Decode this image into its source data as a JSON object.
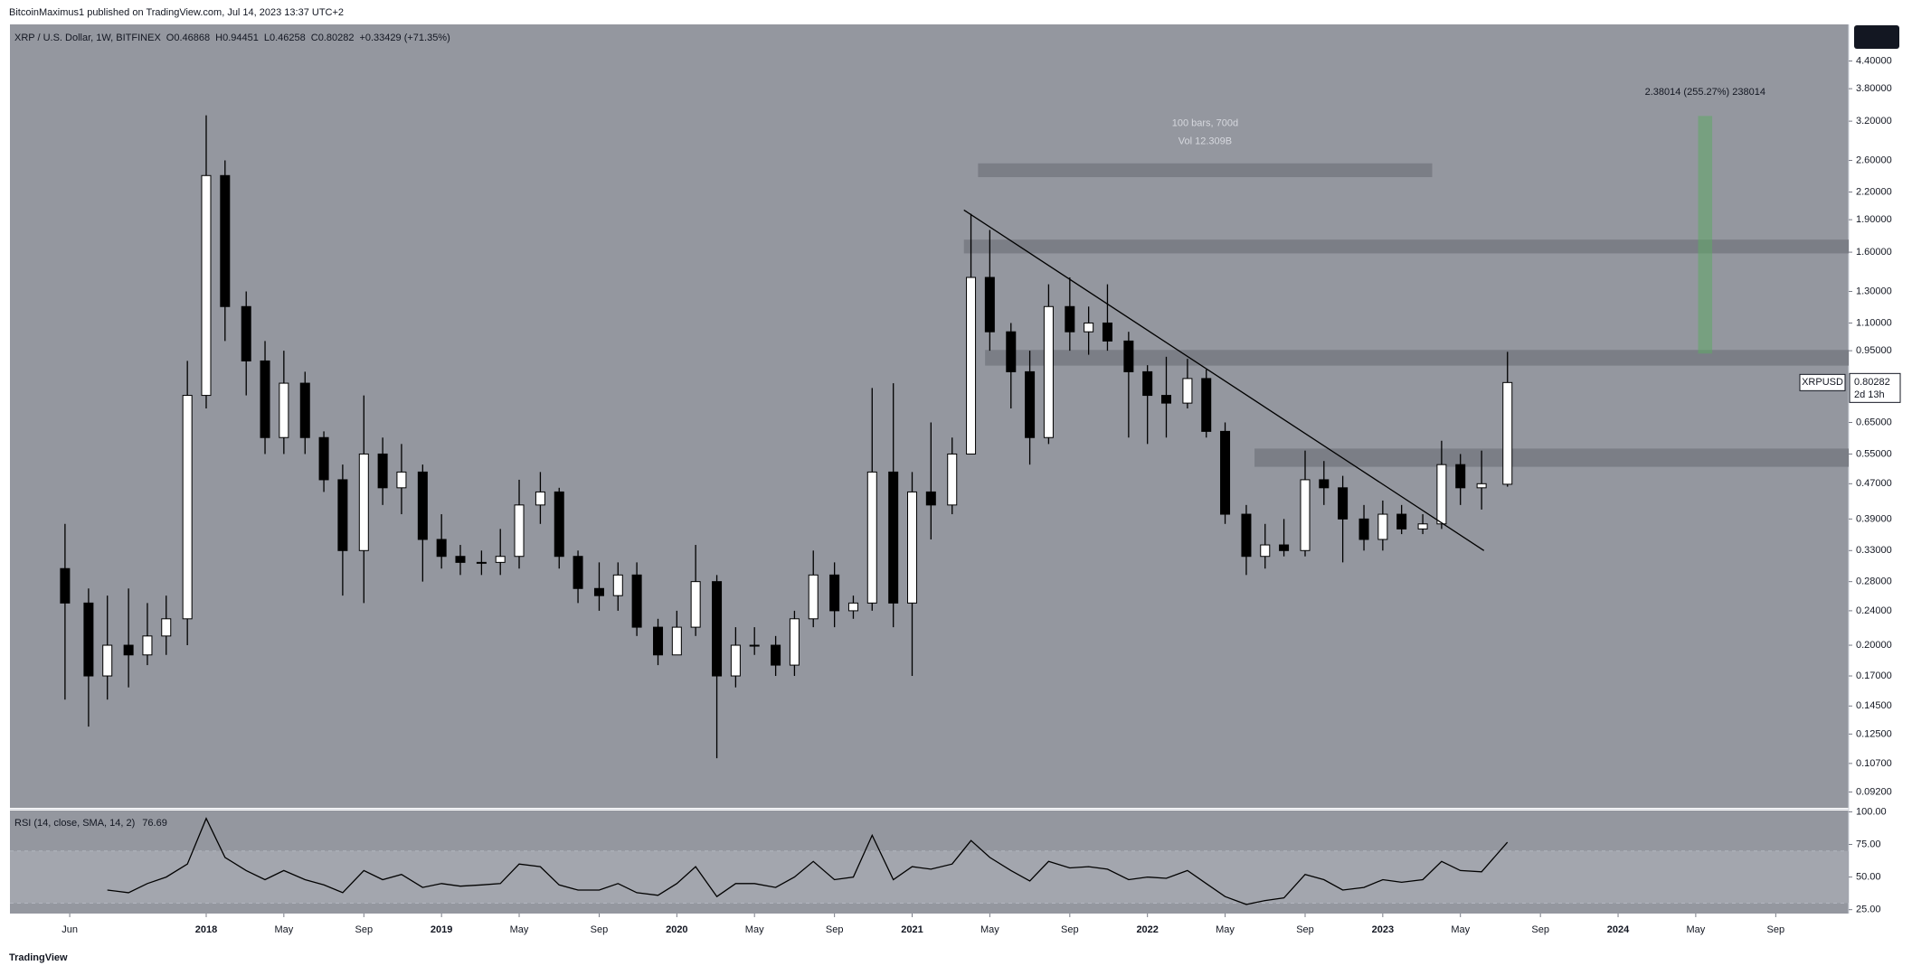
{
  "header": {
    "publisher": "BitcoinMaximus1 published on TradingView.com, Jul 14, 2023 13:37 UTC+2"
  },
  "chart_data": {
    "type": "candlestick",
    "symbol": "XRP / U.S. Dollar, 1W, BITFINEX",
    "ohlc_letters": [
      "O",
      "H",
      "L",
      "C"
    ],
    "change": "+0.33429 (+71.35%)",
    "x": [
      2017.4,
      2017.5,
      2017.58,
      2017.67,
      2017.75,
      2017.83,
      2017.92,
      2018.0,
      2018.08,
      2018.17,
      2018.25,
      2018.33,
      2018.42,
      2018.5,
      2018.58,
      2018.67,
      2018.75,
      2018.83,
      2018.92,
      2019.0,
      2019.08,
      2019.17,
      2019.25,
      2019.33,
      2019.42,
      2019.5,
      2019.58,
      2019.67,
      2019.75,
      2019.83,
      2019.92,
      2020.0,
      2020.08,
      2020.17,
      2020.25,
      2020.33,
      2020.42,
      2020.5,
      2020.58,
      2020.67,
      2020.75,
      2020.83,
      2020.92,
      2021.0,
      2021.08,
      2021.17,
      2021.25,
      2021.33,
      2021.42,
      2021.5,
      2021.58,
      2021.67,
      2021.75,
      2021.83,
      2021.92,
      2022.0,
      2022.08,
      2022.17,
      2022.25,
      2022.33,
      2022.42,
      2022.5,
      2022.58,
      2022.67,
      2022.75,
      2022.83,
      2022.92,
      2023.0,
      2023.08,
      2023.17,
      2023.25,
      2023.33,
      2023.42,
      2023.53
    ],
    "ohlc": [
      [
        0.3,
        0.38,
        0.15,
        0.25
      ],
      [
        0.25,
        0.27,
        0.13,
        0.17
      ],
      [
        0.17,
        0.26,
        0.15,
        0.2
      ],
      [
        0.2,
        0.27,
        0.16,
        0.19
      ],
      [
        0.19,
        0.25,
        0.18,
        0.21
      ],
      [
        0.21,
        0.26,
        0.19,
        0.23
      ],
      [
        0.23,
        0.9,
        0.2,
        0.75
      ],
      [
        0.75,
        3.3,
        0.7,
        2.4
      ],
      [
        2.4,
        2.6,
        1.0,
        1.2
      ],
      [
        1.2,
        1.3,
        0.75,
        0.9
      ],
      [
        0.9,
        1.0,
        0.55,
        0.6
      ],
      [
        0.6,
        0.95,
        0.55,
        0.8
      ],
      [
        0.8,
        0.85,
        0.55,
        0.6
      ],
      [
        0.6,
        0.62,
        0.45,
        0.48
      ],
      [
        0.48,
        0.52,
        0.26,
        0.33
      ],
      [
        0.33,
        0.75,
        0.25,
        0.55
      ],
      [
        0.55,
        0.6,
        0.42,
        0.46
      ],
      [
        0.46,
        0.58,
        0.4,
        0.5
      ],
      [
        0.5,
        0.52,
        0.28,
        0.35
      ],
      [
        0.35,
        0.4,
        0.3,
        0.32
      ],
      [
        0.32,
        0.34,
        0.29,
        0.31
      ],
      [
        0.31,
        0.33,
        0.29,
        0.31
      ],
      [
        0.31,
        0.37,
        0.29,
        0.32
      ],
      [
        0.32,
        0.48,
        0.3,
        0.42
      ],
      [
        0.42,
        0.5,
        0.38,
        0.45
      ],
      [
        0.45,
        0.46,
        0.3,
        0.32
      ],
      [
        0.32,
        0.33,
        0.25,
        0.27
      ],
      [
        0.27,
        0.31,
        0.24,
        0.26
      ],
      [
        0.26,
        0.31,
        0.24,
        0.29
      ],
      [
        0.29,
        0.31,
        0.21,
        0.22
      ],
      [
        0.22,
        0.23,
        0.18,
        0.19
      ],
      [
        0.19,
        0.24,
        0.19,
        0.22
      ],
      [
        0.22,
        0.34,
        0.21,
        0.28
      ],
      [
        0.28,
        0.29,
        0.11,
        0.17
      ],
      [
        0.17,
        0.22,
        0.16,
        0.2
      ],
      [
        0.2,
        0.22,
        0.19,
        0.2
      ],
      [
        0.2,
        0.21,
        0.17,
        0.18
      ],
      [
        0.18,
        0.24,
        0.17,
        0.23
      ],
      [
        0.23,
        0.33,
        0.22,
        0.29
      ],
      [
        0.29,
        0.31,
        0.22,
        0.24
      ],
      [
        0.24,
        0.26,
        0.23,
        0.25
      ],
      [
        0.25,
        0.78,
        0.24,
        0.5
      ],
      [
        0.5,
        0.8,
        0.22,
        0.25
      ],
      [
        0.25,
        0.5,
        0.17,
        0.45
      ],
      [
        0.45,
        0.65,
        0.35,
        0.42
      ],
      [
        0.42,
        0.6,
        0.4,
        0.55
      ],
      [
        0.55,
        1.96,
        0.55,
        1.4
      ],
      [
        1.4,
        1.8,
        0.95,
        1.05
      ],
      [
        1.05,
        1.1,
        0.7,
        0.85
      ],
      [
        0.85,
        0.95,
        0.52,
        0.6
      ],
      [
        0.6,
        1.35,
        0.58,
        1.2
      ],
      [
        1.2,
        1.4,
        0.95,
        1.05
      ],
      [
        1.05,
        1.2,
        0.93,
        1.1
      ],
      [
        1.1,
        1.35,
        0.95,
        1.0
      ],
      [
        1.0,
        1.05,
        0.6,
        0.85
      ],
      [
        0.85,
        0.88,
        0.58,
        0.75
      ],
      [
        0.75,
        0.92,
        0.6,
        0.72
      ],
      [
        0.72,
        0.91,
        0.7,
        0.82
      ],
      [
        0.82,
        0.86,
        0.6,
        0.62
      ],
      [
        0.62,
        0.65,
        0.38,
        0.4
      ],
      [
        0.4,
        0.42,
        0.29,
        0.32
      ],
      [
        0.32,
        0.38,
        0.3,
        0.34
      ],
      [
        0.34,
        0.39,
        0.32,
        0.33
      ],
      [
        0.33,
        0.56,
        0.32,
        0.48
      ],
      [
        0.48,
        0.53,
        0.42,
        0.46
      ],
      [
        0.46,
        0.49,
        0.31,
        0.39
      ],
      [
        0.39,
        0.42,
        0.33,
        0.35
      ],
      [
        0.35,
        0.43,
        0.33,
        0.4
      ],
      [
        0.4,
        0.42,
        0.36,
        0.37
      ],
      [
        0.37,
        0.4,
        0.36,
        0.38
      ],
      [
        0.38,
        0.59,
        0.37,
        0.52
      ],
      [
        0.52,
        0.55,
        0.42,
        0.46
      ],
      [
        0.46,
        0.56,
        0.41,
        0.47
      ],
      [
        0.46868,
        0.94451,
        0.46258,
        0.80282
      ]
    ],
    "up_color": "#ffffff",
    "down_color": "#000000",
    "log_scale": true,
    "ylim": [
      0.0846,
      5.34
    ],
    "yticks": [
      {
        "value": 4.4,
        "label": "4.40000"
      },
      {
        "value": 3.8,
        "label": "3.80000"
      },
      {
        "value": 3.2,
        "label": "3.20000"
      },
      {
        "value": 2.6,
        "label": "2.60000"
      },
      {
        "value": 2.2,
        "label": "2.20000"
      },
      {
        "value": 1.9,
        "label": "1.90000"
      },
      {
        "value": 1.6,
        "label": "1.60000"
      },
      {
        "value": 1.3,
        "label": "1.30000"
      },
      {
        "value": 1.1,
        "label": "1.10000"
      },
      {
        "value": 0.95,
        "label": "0.95000"
      },
      {
        "value": 0.65,
        "label": "0.65000"
      },
      {
        "value": 0.55,
        "label": "0.55000"
      },
      {
        "value": 0.47,
        "label": "0.47000"
      },
      {
        "value": 0.39,
        "label": "0.39000"
      },
      {
        "value": 0.33,
        "label": "0.33000"
      },
      {
        "value": 0.28,
        "label": "0.28000"
      },
      {
        "value": 0.24,
        "label": "0.24000"
      },
      {
        "value": 0.2,
        "label": "0.20000"
      },
      {
        "value": 0.17,
        "label": "0.17000"
      },
      {
        "value": 0.145,
        "label": "0.14500"
      },
      {
        "value": 0.125,
        "label": "0.12500"
      },
      {
        "value": 0.107,
        "label": "0.10700"
      },
      {
        "value": 0.092,
        "label": "0.09200"
      }
    ],
    "xlim": [
      2017.166,
      2024.98
    ],
    "xticks": [
      {
        "value": 2017.42,
        "label": "Jun"
      },
      2018,
      {
        "value": 2018.33,
        "label": "May"
      },
      {
        "value": 2018.67,
        "label": "Sep"
      },
      2019,
      {
        "value": 2019.33,
        "label": "May"
      },
      {
        "value": 2019.67,
        "label": "Sep"
      },
      2020,
      {
        "value": 2020.33,
        "label": "May"
      },
      {
        "value": 2020.67,
        "label": "Sep"
      },
      2021,
      {
        "value": 2021.33,
        "label": "May"
      },
      {
        "value": 2021.67,
        "label": "Sep"
      },
      2022,
      {
        "value": 2022.33,
        "label": "May"
      },
      {
        "value": 2022.67,
        "label": "Sep"
      },
      2023,
      {
        "value": 2023.33,
        "label": "May"
      },
      {
        "value": 2023.67,
        "label": "Sep"
      },
      2024,
      {
        "value": 2024.33,
        "label": "May"
      },
      {
        "value": 2024.67,
        "label": "Sep"
      }
    ],
    "last_price": {
      "symbol": "XRPUSD",
      "countdown": "2d 13h"
    },
    "zones": [
      {
        "range": [
          2.38,
          2.56
        ],
        "x": [
          2021.28,
          2023.21
        ]
      },
      {
        "range": [
          1.59,
          1.71
        ],
        "x": [
          2021.22,
          2024.98
        ]
      },
      {
        "range": [
          0.878,
          0.954
        ],
        "x": [
          2021.31,
          2024.98
        ]
      },
      {
        "range": [
          0.514,
          0.566
        ],
        "x": [
          2022.455,
          2024.98
        ]
      }
    ],
    "zone_color": "#7b7e86",
    "trendline": {
      "x": [
        2021.22,
        2023.43
      ],
      "y": [
        2.0,
        0.33
      ]
    },
    "measure": {
      "lines": [
        "100 bars, 700d",
        "Vol 12.309B"
      ]
    },
    "target": {
      "label": "2.38014 (255.27%) 238014",
      "range": [
        0.936,
        3.29
      ],
      "x": [
        2024.34,
        2024.4
      ],
      "color": "#5fa866"
    },
    "rsi": {
      "title": "RSI (14, close, SMA, 14, 2)",
      "values": [
        null,
        null,
        40,
        38,
        45,
        50,
        60,
        95,
        65,
        55,
        48,
        55,
        48,
        44,
        38,
        55,
        48,
        52,
        42,
        45,
        43,
        44,
        45,
        60,
        58,
        44,
        40,
        40,
        45,
        38,
        36,
        45,
        58,
        35,
        45,
        45,
        42,
        50,
        62,
        48,
        50,
        82,
        48,
        58,
        56,
        60,
        78,
        65,
        55,
        47,
        62,
        57,
        58,
        56,
        48,
        50,
        49,
        55,
        45,
        35,
        29,
        32,
        34,
        52,
        48,
        40,
        42,
        48,
        46,
        48,
        62,
        55,
        54,
        76.69
      ],
      "ylim": [
        22,
        101
      ],
      "yticks": [
        {
          "value": 100,
          "label": "100.00"
        },
        {
          "value": 75,
          "label": "75.00"
        },
        {
          "value": 50,
          "label": "50.00"
        },
        {
          "value": 25,
          "label": "25.00"
        }
      ],
      "band": [
        30,
        70
      ],
      "color": "#000000"
    }
  },
  "footer": {
    "brand": "TradingView"
  }
}
